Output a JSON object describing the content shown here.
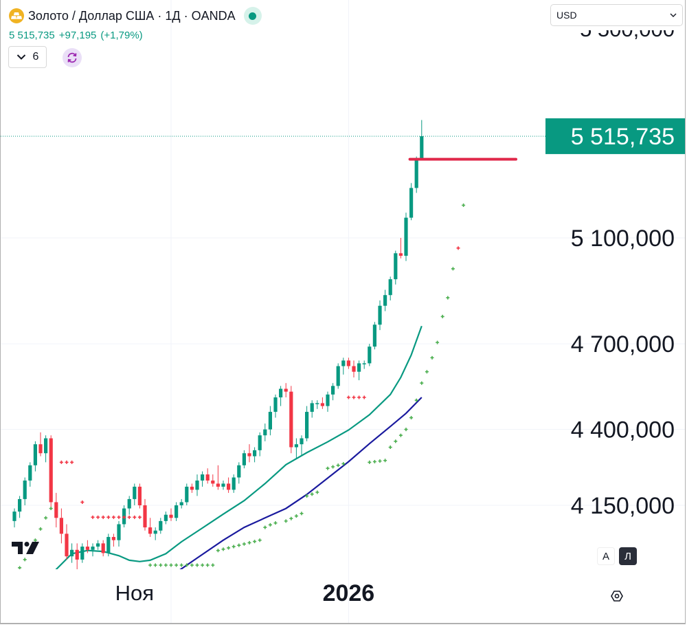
{
  "header": {
    "title": "Золото / Доллар США · 1Д · OANDA",
    "last_price": "5 515,735",
    "change": "+97,195",
    "change_pct": "(+1,79%)"
  },
  "indicators": {
    "count": "6"
  },
  "currency": {
    "selected": "USD"
  },
  "price_scale": {
    "labels": [
      "5 100,000",
      "4 700,000",
      "4 400,000",
      "4 150,000"
    ],
    "top_label_partial": "5 500,000"
  },
  "current_price_tag": "5 515,735",
  "time_scale": {
    "labels": [
      "Ноя",
      "2026"
    ]
  },
  "scale_buttons": {
    "auto": "A",
    "log": "Л"
  },
  "colors": {
    "up": "#089981",
    "down": "#f23645",
    "ma_fast": "#089981",
    "ma_slow": "#1a1a9e",
    "psar_up": "#4caf50",
    "psar_down": "#f23645",
    "level_line": "#e0284a",
    "symbol_icon": "#f0b323"
  },
  "icons": {
    "symbol": "gold-bars-icon",
    "live": "market-open-dot-icon",
    "indicators_toggle": "chevron-down-icon",
    "sync": "sync-icon",
    "currency_dropdown": "chevron-down-icon",
    "logo": "tradingview-logo-icon",
    "settings": "gear-icon"
  },
  "chart_data": {
    "type": "candlestick",
    "scale": "log",
    "y_ticks": [
      4150,
      4400,
      4700,
      5100
    ],
    "start_date": "2025-10-02",
    "candles": [
      [
        4100,
        4140,
        4080,
        4130
      ],
      [
        4130,
        4180,
        4110,
        4170
      ],
      [
        4170,
        4240,
        4150,
        4230
      ],
      [
        4230,
        4290,
        4210,
        4280
      ],
      [
        4280,
        4360,
        4260,
        4350
      ],
      [
        4350,
        4390,
        4310,
        4320
      ],
      [
        4320,
        4380,
        4290,
        4370
      ],
      [
        4370,
        4380,
        4140,
        4160
      ],
      [
        4160,
        4190,
        4080,
        4110
      ],
      [
        4110,
        4140,
        4030,
        4060
      ],
      [
        4060,
        4090,
        3980,
        3990
      ],
      [
        3990,
        4030,
        3970,
        4010
      ],
      [
        4010,
        4030,
        3950,
        3980
      ],
      [
        3980,
        4030,
        3970,
        4020
      ],
      [
        4020,
        4040,
        4000,
        4010
      ],
      [
        4010,
        4030,
        3990,
        4020
      ],
      [
        4020,
        4040,
        4010,
        4030
      ],
      [
        4030,
        4040,
        3990,
        4000
      ],
      [
        4000,
        4060,
        3990,
        4050
      ],
      [
        4050,
        4060,
        4020,
        4040
      ],
      [
        4040,
        4100,
        4020,
        4090
      ],
      [
        4090,
        4150,
        4080,
        4140
      ],
      [
        4140,
        4180,
        4120,
        4170
      ],
      [
        4170,
        4220,
        4150,
        4210
      ],
      [
        4210,
        4220,
        4140,
        4150
      ],
      [
        4150,
        4170,
        4070,
        4080
      ],
      [
        4080,
        4110,
        4050,
        4060
      ],
      [
        4060,
        4080,
        4040,
        4070
      ],
      [
        4070,
        4110,
        4060,
        4100
      ],
      [
        4100,
        4130,
        4090,
        4120
      ],
      [
        4120,
        4140,
        4100,
        4110
      ],
      [
        4110,
        4160,
        4100,
        4150
      ],
      [
        4150,
        4170,
        4140,
        4160
      ],
      [
        4160,
        4220,
        4150,
        4210
      ],
      [
        4210,
        4220,
        4190,
        4200
      ],
      [
        4200,
        4250,
        4180,
        4230
      ],
      [
        4230,
        4260,
        4210,
        4250
      ],
      [
        4250,
        4270,
        4220,
        4230
      ],
      [
        4230,
        4250,
        4210,
        4220
      ],
      [
        4220,
        4280,
        4200,
        4210
      ],
      [
        4210,
        4230,
        4200,
        4220
      ],
      [
        4220,
        4240,
        4190,
        4200
      ],
      [
        4200,
        4250,
        4190,
        4240
      ],
      [
        4240,
        4290,
        4220,
        4280
      ],
      [
        4280,
        4330,
        4270,
        4320
      ],
      [
        4320,
        4350,
        4290,
        4310
      ],
      [
        4310,
        4340,
        4290,
        4330
      ],
      [
        4330,
        4390,
        4310,
        4380
      ],
      [
        4380,
        4420,
        4360,
        4400
      ],
      [
        4400,
        4480,
        4380,
        4460
      ],
      [
        4460,
        4520,
        4440,
        4510
      ],
      [
        4510,
        4550,
        4480,
        4540
      ],
      [
        4540,
        4560,
        4510,
        4530
      ],
      [
        4530,
        4550,
        4320,
        4340
      ],
      [
        4340,
        4370,
        4300,
        4350
      ],
      [
        4350,
        4380,
        4310,
        4370
      ],
      [
        4370,
        4480,
        4360,
        4460
      ],
      [
        4460,
        4500,
        4440,
        4490
      ],
      [
        4490,
        4500,
        4470,
        4490
      ],
      [
        4490,
        4510,
        4470,
        4480
      ],
      [
        4480,
        4530,
        4460,
        4520
      ],
      [
        4520,
        4560,
        4500,
        4550
      ],
      [
        4550,
        4630,
        4540,
        4620
      ],
      [
        4620,
        4650,
        4590,
        4640
      ],
      [
        4640,
        4650,
        4610,
        4620
      ],
      [
        4620,
        4640,
        4580,
        4600
      ],
      [
        4600,
        4640,
        4570,
        4630
      ],
      [
        4630,
        4640,
        4610,
        4630
      ],
      [
        4630,
        4700,
        4620,
        4690
      ],
      [
        4690,
        4780,
        4680,
        4770
      ],
      [
        4770,
        4860,
        4750,
        4840
      ],
      [
        4840,
        4900,
        4820,
        4880
      ],
      [
        4880,
        4950,
        4860,
        4940
      ],
      [
        4940,
        5050,
        4920,
        5040
      ],
      [
        5040,
        5100,
        5020,
        5030
      ],
      [
        5030,
        5200,
        5010,
        5180
      ],
      [
        5180,
        5320,
        5170,
        5300
      ],
      [
        5300,
        5430,
        5280,
        5418.54
      ],
      [
        5418.54,
        5585,
        5418.54,
        5515.735
      ]
    ],
    "ma_fast": [
      [
        6,
        3900
      ],
      [
        8,
        3950
      ],
      [
        11,
        3998
      ],
      [
        14,
        4008
      ],
      [
        17,
        4005
      ],
      [
        20,
        3992
      ],
      [
        22,
        3978
      ],
      [
        24,
        3974
      ],
      [
        26,
        3978
      ],
      [
        29,
        3998
      ],
      [
        32,
        4035
      ],
      [
        36,
        4078
      ],
      [
        40,
        4122
      ],
      [
        44,
        4165
      ],
      [
        48,
        4220
      ],
      [
        52,
        4282
      ],
      [
        56,
        4322
      ],
      [
        60,
        4358
      ],
      [
        64,
        4398
      ],
      [
        68,
        4450
      ],
      [
        72,
        4520
      ],
      [
        74,
        4580
      ],
      [
        76,
        4660
      ],
      [
        78,
        4765
      ]
    ],
    "ma_slow": [
      [
        20,
        3800
      ],
      [
        25,
        3870
      ],
      [
        30,
        3930
      ],
      [
        35,
        3985
      ],
      [
        40,
        4040
      ],
      [
        44,
        4080
      ],
      [
        48,
        4110
      ],
      [
        52,
        4140
      ],
      [
        56,
        4185
      ],
      [
        60,
        4238
      ],
      [
        64,
        4292
      ],
      [
        68,
        4352
      ],
      [
        72,
        4410
      ],
      [
        75,
        4455
      ],
      [
        78,
        4510
      ]
    ],
    "psar": [
      [
        0,
        3935,
        "up"
      ],
      [
        1,
        3955,
        "up"
      ],
      [
        2,
        3980,
        "up"
      ],
      [
        3,
        4010,
        "up"
      ],
      [
        4,
        4040,
        "up"
      ],
      [
        5,
        4075,
        "up"
      ],
      [
        6,
        4110,
        "up"
      ],
      [
        7,
        4140,
        "up"
      ],
      [
        9,
        4290,
        "down"
      ],
      [
        10,
        4290,
        "down"
      ],
      [
        11,
        4290,
        "down"
      ],
      [
        13,
        4160,
        "down"
      ],
      [
        15,
        4112,
        "down"
      ],
      [
        16,
        4112,
        "down"
      ],
      [
        17,
        4112,
        "down"
      ],
      [
        18,
        4112,
        "down"
      ],
      [
        19,
        4112,
        "down"
      ],
      [
        20,
        4112,
        "down"
      ],
      [
        21,
        4112,
        "down"
      ],
      [
        22,
        4112,
        "down"
      ],
      [
        23,
        4112,
        "down"
      ],
      [
        24,
        4112,
        "down"
      ],
      [
        25,
        4112,
        "down"
      ],
      [
        26,
        3963,
        "up"
      ],
      [
        27,
        3963,
        "up"
      ],
      [
        28,
        3963,
        "up"
      ],
      [
        29,
        3963,
        "up"
      ],
      [
        30,
        3963,
        "up"
      ],
      [
        31,
        3963,
        "up"
      ],
      [
        32,
        3963,
        "up"
      ],
      [
        33,
        3963,
        "up"
      ],
      [
        34,
        3963,
        "up"
      ],
      [
        35,
        3963,
        "up"
      ],
      [
        36,
        3963,
        "up"
      ],
      [
        37,
        3963,
        "up"
      ],
      [
        38,
        3963,
        "up"
      ],
      [
        39,
        4008,
        "up"
      ],
      [
        40,
        4012,
        "up"
      ],
      [
        41,
        4016,
        "up"
      ],
      [
        42,
        4020,
        "up"
      ],
      [
        43,
        4024,
        "up"
      ],
      [
        44,
        4028,
        "up"
      ],
      [
        45,
        4032,
        "up"
      ],
      [
        46,
        4036,
        "up"
      ],
      [
        47,
        4040,
        "up"
      ],
      [
        48,
        4080,
        "up"
      ],
      [
        49,
        4088,
        "up"
      ],
      [
        50,
        4094,
        "up"
      ],
      [
        52,
        4100,
        "up"
      ],
      [
        53,
        4108,
        "up"
      ],
      [
        54,
        4116,
        "up"
      ],
      [
        55,
        4124,
        "up"
      ],
      [
        56,
        4180,
        "up"
      ],
      [
        57,
        4186,
        "up"
      ],
      [
        58,
        4192,
        "up"
      ],
      [
        60,
        4270,
        "up"
      ],
      [
        61,
        4275,
        "up"
      ],
      [
        62,
        4280,
        "up"
      ],
      [
        63,
        4285,
        "up"
      ],
      [
        64,
        4510,
        "down"
      ],
      [
        65,
        4510,
        "down"
      ],
      [
        66,
        4510,
        "down"
      ],
      [
        67,
        4510,
        "down"
      ],
      [
        68,
        4290,
        "up"
      ],
      [
        69,
        4292,
        "up"
      ],
      [
        70,
        4294,
        "up"
      ],
      [
        71,
        4296,
        "up"
      ],
      [
        72,
        4340,
        "up"
      ],
      [
        73,
        4360,
        "up"
      ],
      [
        74,
        4380,
        "up"
      ],
      [
        75,
        4400,
        "up"
      ],
      [
        76,
        4440,
        "up"
      ],
      [
        77,
        4500,
        "up"
      ],
      [
        78,
        4560,
        "up"
      ],
      [
        79,
        4600,
        "up"
      ],
      [
        80,
        4650,
        "up"
      ],
      [
        81,
        4705,
        "up"
      ],
      [
        82,
        4800,
        "up"
      ],
      [
        83,
        4870,
        "up"
      ],
      [
        84,
        4980,
        "up"
      ],
      [
        85,
        5060,
        "down"
      ],
      [
        86,
        5230,
        "up"
      ]
    ],
    "level": 5418.54
  }
}
